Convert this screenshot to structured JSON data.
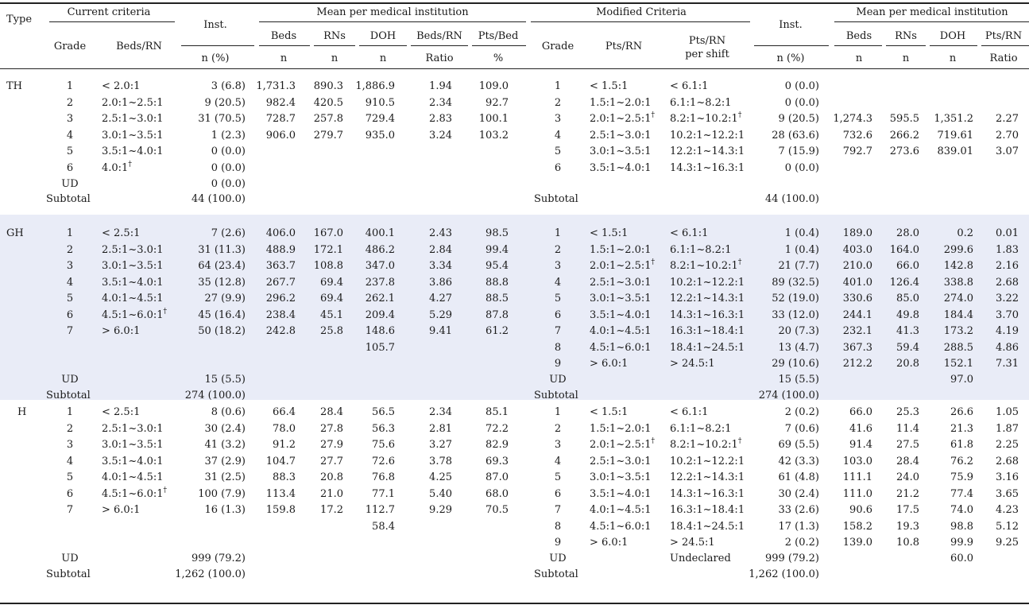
{
  "header": {
    "type": "Type",
    "current_criteria": "Current criteria",
    "grade": "Grade",
    "beds_rn": "Beds/RN",
    "inst": "Inst.",
    "n_pct": "n (%)",
    "mean_per_inst": "Mean per medical institution",
    "beds": "Beds",
    "rns": "RNs",
    "doh": "DOH",
    "beds_rn_col": "Beds/RN",
    "pts_bed": "Pts/Bed",
    "n": "n",
    "ratio": "Ratio",
    "pct": "%",
    "modified_criteria": "Modified Criteria",
    "pts_rn": "Pts/RN",
    "pts_rn_shift_1": "Pts/RN",
    "pts_rn_shift_2": "per shift",
    "pts_rn_ratio": "Pts/RN",
    "dagger": "†"
  },
  "sections": [
    {
      "type": "TH",
      "band": false,
      "current": {
        "rows": [
          {
            "grade": "1",
            "range": "< 2.0:1",
            "inst": "3 (6.8)",
            "beds": "1,731.3",
            "rns": "890.3",
            "doh": "1,886.9",
            "bedsrn": "1.94",
            "ptsbed": "109.0"
          },
          {
            "grade": "2",
            "range": "2.0:1~2.5:1",
            "inst": "9 (20.5)",
            "beds": "982.4",
            "rns": "420.5",
            "doh": "910.5",
            "bedsrn": "2.34",
            "ptsbed": "92.7"
          },
          {
            "grade": "3",
            "range": "2.5:1~3.0:1",
            "inst": "31 (70.5)",
            "beds": "728.7",
            "rns": "257.8",
            "doh": "729.4",
            "bedsrn": "2.83",
            "ptsbed": "100.1"
          },
          {
            "grade": "4",
            "range": "3.0:1~3.5:1",
            "inst": "1 (2.3)",
            "beds": "906.0",
            "rns": "279.7",
            "doh": "935.0",
            "bedsrn": "3.24",
            "ptsbed": "103.2"
          },
          {
            "grade": "5",
            "range": "3.5:1~4.0:1",
            "inst": "0 (0.0)",
            "beds": "",
            "rns": "",
            "doh": "",
            "bedsrn": "",
            "ptsbed": ""
          },
          {
            "grade": "6",
            "range": "4.0:1",
            "dagger": true,
            "inst": "0 (0.0)",
            "beds": "",
            "rns": "",
            "doh": "",
            "bedsrn": "",
            "ptsbed": ""
          },
          {
            "grade": "UD",
            "range": "",
            "inst": "0 (0.0)",
            "beds": "",
            "rns": "",
            "doh": "",
            "bedsrn": "",
            "ptsbed": ""
          }
        ],
        "extra_doh": "",
        "subtotal_label": "Subtotal",
        "subtotal": "44 (100.0)"
      },
      "modified": {
        "rows": [
          {
            "grade": "1",
            "ptsrn": "< 1.5:1",
            "shift": "< 6.1:1",
            "inst": "0 (0.0)",
            "beds": "",
            "rns": "",
            "doh": "",
            "ratio": ""
          },
          {
            "grade": "2",
            "ptsrn": "1.5:1~2.0:1",
            "shift": "6.1:1~8.2:1",
            "inst": "0 (0.0)",
            "beds": "",
            "rns": "",
            "doh": "",
            "ratio": ""
          },
          {
            "grade": "3",
            "ptsrn": "2.0:1~2.5:1",
            "dagger": true,
            "shift": "8.2:1~10.2:1",
            "inst": "9 (20.5)",
            "beds": "1,274.3",
            "rns": "595.5",
            "doh": "1,351.2",
            "ratio": "2.27"
          },
          {
            "grade": "4",
            "ptsrn": "2.5:1~3.0:1",
            "shift": "10.2:1~12.2:1",
            "inst": "28 (63.6)",
            "beds": "732.6",
            "rns": "266.2",
            "doh": "719.61",
            "ratio": "2.70"
          },
          {
            "grade": "5",
            "ptsrn": "3.0:1~3.5:1",
            "shift": "12.2:1~14.3:1",
            "inst": "7 (15.9)",
            "beds": "792.7",
            "rns": "273.6",
            "doh": "839.01",
            "ratio": "3.07"
          },
          {
            "grade": "6",
            "ptsrn": "3.5:1~4.0:1",
            "shift": "14.3:1~16.3:1",
            "inst": "0 (0.0)",
            "beds": "",
            "rns": "",
            "doh": "",
            "ratio": ""
          }
        ],
        "ud": null,
        "subtotal_label": "Subtotal",
        "subtotal": "44 (100.0)"
      }
    },
    {
      "type": "GH",
      "band": true,
      "current": {
        "rows": [
          {
            "grade": "1",
            "range": "< 2.5:1",
            "inst": "7 (2.6)",
            "beds": "406.0",
            "rns": "167.0",
            "doh": "400.1",
            "bedsrn": "2.43",
            "ptsbed": "98.5"
          },
          {
            "grade": "2",
            "range": "2.5:1~3.0:1",
            "inst": "31 (11.3)",
            "beds": "488.9",
            "rns": "172.1",
            "doh": "486.2",
            "bedsrn": "2.84",
            "ptsbed": "99.4"
          },
          {
            "grade": "3",
            "range": "3.0:1~3.5:1",
            "inst": "64 (23.4)",
            "beds": "363.7",
            "rns": "108.8",
            "doh": "347.0",
            "bedsrn": "3.34",
            "ptsbed": "95.4"
          },
          {
            "grade": "4",
            "range": "3.5:1~4.0:1",
            "inst": "35 (12.8)",
            "beds": "267.7",
            "rns": "69.4",
            "doh": "237.8",
            "bedsrn": "3.86",
            "ptsbed": "88.8"
          },
          {
            "grade": "5",
            "range": "4.0:1~4.5:1",
            "inst": "27 (9.9)",
            "beds": "296.2",
            "rns": "69.4",
            "doh": "262.1",
            "bedsrn": "4.27",
            "ptsbed": "88.5"
          },
          {
            "grade": "6",
            "range": "4.5:1~6.0:1",
            "dagger": true,
            "inst": "45 (16.4)",
            "beds": "238.4",
            "rns": "45.1",
            "doh": "209.4",
            "bedsrn": "5.29",
            "ptsbed": "87.8"
          },
          {
            "grade": "7",
            "range": "> 6.0:1",
            "inst": "50 (18.2)",
            "beds": "242.8",
            "rns": "25.8",
            "doh": "148.6",
            "bedsrn": "9.41",
            "ptsbed": "61.2"
          }
        ],
        "extra_doh": "105.7",
        "ud": {
          "label": "UD",
          "inst": "15 (5.5)"
        },
        "subtotal_label": "Subtotal",
        "subtotal": "274 (100.0)"
      },
      "modified": {
        "rows": [
          {
            "grade": "1",
            "ptsrn": "< 1.5:1",
            "shift": "< 6.1:1",
            "inst": "1 (0.4)",
            "beds": "189.0",
            "rns": "28.0",
            "doh": "0.2",
            "ratio": "0.01"
          },
          {
            "grade": "2",
            "ptsrn": "1.5:1~2.0:1",
            "shift": "6.1:1~8.2:1",
            "inst": "1 (0.4)",
            "beds": "403.0",
            "rns": "164.0",
            "doh": "299.6",
            "ratio": "1.83"
          },
          {
            "grade": "3",
            "ptsrn": "2.0:1~2.5:1",
            "dagger": true,
            "shift": "8.2:1~10.2:1",
            "shiftdagger": true,
            "inst": "21 (7.7)",
            "beds": "210.0",
            "rns": "66.0",
            "doh": "142.8",
            "ratio": "2.16"
          },
          {
            "grade": "4",
            "ptsrn": "2.5:1~3.0:1",
            "shift": "10.2:1~12.2:1",
            "inst": "89 (32.5)",
            "beds": "401.0",
            "rns": "126.4",
            "doh": "338.8",
            "ratio": "2.68"
          },
          {
            "grade": "5",
            "ptsrn": "3.0:1~3.5:1",
            "shift": "12.2:1~14.3:1",
            "inst": "52 (19.0)",
            "beds": "330.6",
            "rns": "85.0",
            "doh": "274.0",
            "ratio": "3.22"
          },
          {
            "grade": "6",
            "ptsrn": "3.5:1~4.0:1",
            "shift": "14.3:1~16.3:1",
            "inst": "33 (12.0)",
            "beds": "244.1",
            "rns": "49.8",
            "doh": "184.4",
            "ratio": "3.70"
          },
          {
            "grade": "7",
            "ptsrn": "4.0:1~4.5:1",
            "shift": "16.3:1~18.4:1",
            "inst": "20 (7.3)",
            "beds": "232.1",
            "rns": "41.3",
            "doh": "173.2",
            "ratio": "4.19"
          },
          {
            "grade": "8",
            "ptsrn": "4.5:1~6.0:1",
            "shift": "18.4:1~24.5:1",
            "inst": "13 (4.7)",
            "beds": "367.3",
            "rns": "59.4",
            "doh": "288.5",
            "ratio": "4.86"
          },
          {
            "grade": "9",
            "ptsrn": "> 6.0:1",
            "shift": "> 24.5:1",
            "inst": "29 (10.6)",
            "beds": "212.2",
            "rns": "20.8",
            "doh": "152.1",
            "ratio": "7.31"
          }
        ],
        "ud": {
          "label": "UD",
          "shift": "",
          "inst": "15 (5.5)",
          "doh": "97.0"
        },
        "subtotal_label": "Subtotal",
        "subtotal": "274 (100.0)"
      }
    },
    {
      "type": "H",
      "band": false,
      "current": {
        "rows": [
          {
            "grade": "1",
            "range": "< 2.5:1",
            "inst": "8 (0.6)",
            "beds": "66.4",
            "rns": "28.4",
            "doh": "56.5",
            "bedsrn": "2.34",
            "ptsbed": "85.1"
          },
          {
            "grade": "2",
            "range": "2.5:1~3.0:1",
            "inst": "30 (2.4)",
            "beds": "78.0",
            "rns": "27.8",
            "doh": "56.3",
            "bedsrn": "2.81",
            "ptsbed": "72.2"
          },
          {
            "grade": "3",
            "range": "3.0:1~3.5:1",
            "inst": "41 (3.2)",
            "beds": "91.2",
            "rns": "27.9",
            "doh": "75.6",
            "bedsrn": "3.27",
            "ptsbed": "82.9"
          },
          {
            "grade": "4",
            "range": "3.5:1~4.0:1",
            "inst": "37 (2.9)",
            "beds": "104.7",
            "rns": "27.7",
            "doh": "72.6",
            "bedsrn": "3.78",
            "ptsbed": "69.3"
          },
          {
            "grade": "5",
            "range": "4.0:1~4.5:1",
            "inst": "31 (2.5)",
            "beds": "88.3",
            "rns": "20.8",
            "doh": "76.8",
            "bedsrn": "4.25",
            "ptsbed": "87.0"
          },
          {
            "grade": "6",
            "range": "4.5:1~6.0:1",
            "dagger": true,
            "inst": "100 (7.9)",
            "beds": "113.4",
            "rns": "21.0",
            "doh": "77.1",
            "bedsrn": "5.40",
            "ptsbed": "68.0"
          },
          {
            "grade": "7",
            "range": "> 6.0:1",
            "inst": "16 (1.3)",
            "beds": "159.8",
            "rns": "17.2",
            "doh": "112.7",
            "bedsrn": "9.29",
            "ptsbed": "70.5"
          }
        ],
        "extra_doh": "58.4",
        "ud": {
          "label": "UD",
          "inst": "999 (79.2)"
        },
        "subtotal_label": "Subtotal",
        "subtotal": "1,262 (100.0)"
      },
      "modified": {
        "rows": [
          {
            "grade": "1",
            "ptsrn": "< 1.5:1",
            "shift": "< 6.1:1",
            "inst": "2 (0.2)",
            "beds": "66.0",
            "rns": "25.3",
            "doh": "26.6",
            "ratio": "1.05"
          },
          {
            "grade": "2",
            "ptsrn": "1.5:1~2.0:1",
            "shift": "6.1:1~8.2:1",
            "inst": "7 (0.6)",
            "beds": "41.6",
            "rns": "11.4",
            "doh": "21.3",
            "ratio": "1.87"
          },
          {
            "grade": "3",
            "ptsrn": "2.0:1~2.5:1",
            "dagger": true,
            "shift": "8.2:1~10.2:1",
            "shiftdagger": true,
            "inst": "69 (5.5)",
            "beds": "91.4",
            "rns": "27.5",
            "doh": "61.8",
            "ratio": "2.25"
          },
          {
            "grade": "4",
            "ptsrn": "2.5:1~3.0:1",
            "shift": "10.2:1~12.2:1",
            "inst": "42 (3.3)",
            "beds": "103.0",
            "rns": "28.4",
            "doh": "76.2",
            "ratio": "2.68"
          },
          {
            "grade": "5",
            "ptsrn": "3.0:1~3.5:1",
            "shift": "12.2:1~14.3:1",
            "inst": "61 (4.8)",
            "beds": "111.1",
            "rns": "24.0",
            "doh": "75.9",
            "ratio": "3.16"
          },
          {
            "grade": "6",
            "ptsrn": "3.5:1~4.0:1",
            "shift": "14.3:1~16.3:1",
            "inst": "30 (2.4)",
            "beds": "111.0",
            "rns": "21.2",
            "doh": "77.4",
            "ratio": "3.65"
          },
          {
            "grade": "7",
            "ptsrn": "4.0:1~4.5:1",
            "shift": "16.3:1~18.4:1",
            "inst": "33 (2.6)",
            "beds": "90.6",
            "rns": "17.5",
            "doh": "74.0",
            "ratio": "4.23"
          },
          {
            "grade": "8",
            "ptsrn": "4.5:1~6.0:1",
            "shift": "18.4:1~24.5:1",
            "inst": "17 (1.3)",
            "beds": "158.2",
            "rns": "19.3",
            "doh": "98.8",
            "ratio": "5.12"
          },
          {
            "grade": "9",
            "ptsrn": "> 6.0:1",
            "shift": "> 24.5:1",
            "inst": "2 (0.2)",
            "beds": "139.0",
            "rns": "10.8",
            "doh": "99.9",
            "ratio": "9.25"
          }
        ],
        "ud": {
          "label": "UD",
          "shift": "Undeclared",
          "inst": "999 (79.2)",
          "doh": "60.0"
        },
        "subtotal_label": "Subtotal",
        "subtotal": "1,262 (100.0)"
      }
    }
  ]
}
